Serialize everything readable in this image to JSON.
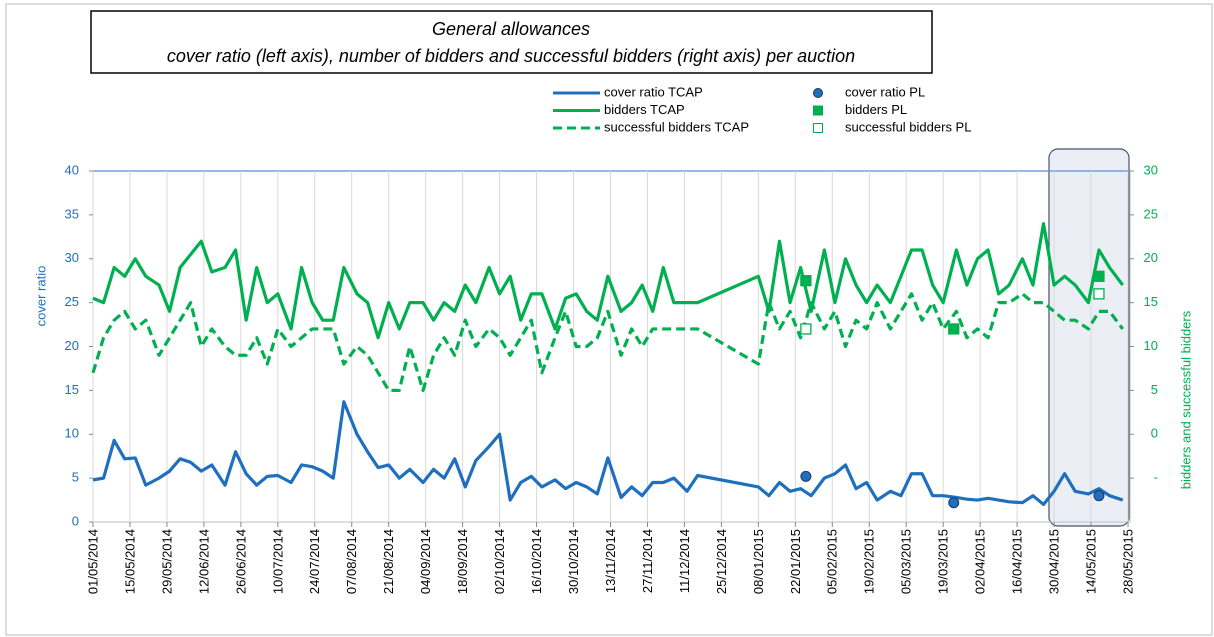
{
  "chart_data": {
    "type": "line",
    "title": "General allowances",
    "subtitle": "cover ratio (left axis), number of bidders and successful bidders (right axis) per auction",
    "y_label": "cover ratio",
    "y2_label": "bidders and successful bidders",
    "xlim": [
      "01/05/2014",
      "28/05/2015"
    ],
    "xticks": [
      "01/05/2014",
      "15/05/2014",
      "29/05/2014",
      "12/06/2014",
      "26/06/2014",
      "10/07/2014",
      "24/07/2014",
      "07/08/2014",
      "21/08/2014",
      "04/09/2014",
      "18/09/2014",
      "02/10/2014",
      "16/10/2014",
      "30/10/2014",
      "13/11/2014",
      "27/11/2014",
      "11/12/2014",
      "25/12/2014",
      "08/01/2015",
      "22/01/2015",
      "05/02/2015",
      "19/02/2015",
      "05/03/2015",
      "19/03/2015",
      "02/04/2015",
      "16/04/2015",
      "30/04/2015",
      "14/05/2015",
      "28/05/2015"
    ],
    "ylim": [
      0,
      40
    ],
    "yticks": [
      0,
      5,
      10,
      15,
      20,
      25,
      30,
      35,
      40
    ],
    "y2lim": [
      -10,
      30
    ],
    "y2ticks": [
      {
        "value": -5,
        "label": "-"
      },
      0,
      5,
      10,
      15,
      20,
      25,
      30
    ],
    "grid": "x",
    "x": [
      "01/05/2014",
      "05/05/2014",
      "09/05/2014",
      "13/05/2014",
      "17/05/2014",
      "21/05/2014",
      "26/05/2014",
      "30/05/2014",
      "03/06/2014",
      "07/06/2014",
      "11/06/2014",
      "15/06/2014",
      "20/06/2014",
      "24/06/2014",
      "28/06/2014",
      "02/07/2014",
      "06/07/2014",
      "10/07/2014",
      "15/07/2014",
      "19/07/2014",
      "23/07/2014",
      "27/07/2014",
      "31/07/2014",
      "04/08/2014",
      "09/08/2014",
      "13/08/2014",
      "17/08/2014",
      "21/08/2014",
      "25/08/2014",
      "29/08/2014",
      "03/09/2014",
      "07/09/2014",
      "11/09/2014",
      "15/09/2014",
      "19/09/2014",
      "23/09/2014",
      "28/09/2014",
      "02/10/2014",
      "06/10/2014",
      "10/10/2014",
      "14/10/2014",
      "18/10/2014",
      "23/10/2014",
      "27/10/2014",
      "31/10/2014",
      "04/11/2014",
      "08/11/2014",
      "12/11/2014",
      "17/11/2014",
      "21/11/2014",
      "25/11/2014",
      "29/11/2014",
      "03/12/2014",
      "07/12/2014",
      "12/12/2014",
      "16/12/2014",
      "08/01/2015",
      "12/01/2015",
      "16/01/2015",
      "20/01/2015",
      "24/01/2015",
      "28/01/2015",
      "02/02/2015",
      "06/02/2015",
      "10/02/2015",
      "14/02/2015",
      "18/02/2015",
      "22/02/2015",
      "27/02/2015",
      "03/03/2015",
      "07/03/2015",
      "11/03/2015",
      "15/03/2015",
      "19/03/2015",
      "24/03/2015",
      "28/03/2015",
      "01/04/2015",
      "05/04/2015",
      "09/04/2015",
      "13/04/2015",
      "18/04/2015",
      "22/04/2015",
      "26/04/2015",
      "30/04/2015",
      "04/05/2015",
      "08/05/2015",
      "13/05/2015",
      "17/05/2015",
      "21/05/2015",
      "26/05/2015"
    ],
    "series": [
      {
        "name": "cover ratio TCAP",
        "color": "#1f6fbf",
        "style": "solid",
        "axis": "y",
        "values": [
          4.8,
          5,
          9.3,
          7.2,
          7.3,
          4.2,
          5,
          5.8,
          7.2,
          6.8,
          5.8,
          6.5,
          4.2,
          8,
          5.5,
          4.2,
          5.2,
          5.3,
          4.5,
          6.5,
          6.3,
          5.8,
          5,
          13.7,
          10,
          8,
          6.2,
          6.5,
          5,
          6,
          4.5,
          6,
          5,
          7.2,
          4,
          7,
          8.6,
          10,
          2.5,
          4.5,
          5.2,
          4,
          4.8,
          3.8,
          4.5,
          4,
          3.2,
          7.3,
          2.8,
          4,
          3,
          4.5,
          4.5,
          5,
          3.5,
          5.3,
          4,
          3,
          4.5,
          3.5,
          3.8,
          3,
          5,
          5.5,
          6.5,
          3.8,
          4.5,
          2.5,
          3.5,
          3,
          5.5,
          5.5,
          3,
          3,
          2.8,
          2.6,
          2.5,
          2.7,
          2.5,
          2.3,
          2.2,
          3,
          2,
          3.5,
          5.5,
          3.5,
          3.2,
          3.8,
          3,
          2.5
        ]
      },
      {
        "name": "bidders TCAP",
        "color": "#00b050",
        "style": "solid",
        "axis": "y2",
        "values": [
          15.5,
          15,
          19,
          18,
          20,
          18,
          17,
          14,
          19,
          20.5,
          22,
          18.5,
          19,
          21,
          13,
          19,
          15,
          16,
          12,
          19,
          15,
          13,
          13,
          19,
          16,
          15,
          11,
          15,
          12,
          15,
          15,
          13,
          15,
          14,
          17,
          15,
          19,
          16,
          18,
          13,
          16,
          16,
          12,
          15.5,
          16,
          14,
          13,
          18,
          14,
          15,
          17,
          14,
          19,
          15,
          15,
          15,
          18,
          14,
          22,
          15,
          19,
          14,
          21,
          15,
          20,
          17,
          15,
          17,
          15,
          18,
          21,
          21,
          17,
          15,
          21,
          17,
          20,
          21,
          16,
          17,
          20,
          17,
          24,
          17,
          18,
          17,
          15,
          21,
          19,
          17
        ]
      },
      {
        "name": "successful bidders TCAP",
        "color": "#00b050",
        "style": "dashed",
        "axis": "y2",
        "values": [
          7,
          11,
          13,
          14,
          12,
          13,
          9,
          11,
          13,
          15,
          10,
          12,
          10,
          9,
          9,
          11,
          8,
          12,
          10,
          11,
          12,
          12,
          12,
          8,
          10,
          9,
          7,
          5,
          5,
          10,
          5,
          9,
          11,
          9,
          13,
          10,
          12,
          11,
          9,
          11,
          13,
          7,
          11,
          14,
          10,
          10,
          11,
          14,
          9,
          12,
          10,
          12,
          12,
          12,
          12,
          12,
          8,
          15,
          12,
          14,
          11,
          15,
          12,
          14,
          10,
          13,
          12,
          15,
          12,
          14,
          16,
          13,
          15,
          12,
          14,
          11,
          12,
          11,
          15,
          15,
          16,
          15,
          15,
          14,
          13,
          13,
          12,
          14,
          14,
          12
        ]
      },
      {
        "name": "cover ratio PL",
        "color": "#1f6fbf",
        "marker": "circle",
        "axis": "y",
        "x": [
          "26/01/2015",
          "23/03/2015",
          "17/05/2015"
        ],
        "values": [
          5.2,
          2.2,
          3
        ]
      },
      {
        "name": "bidders PL",
        "color": "#00b050",
        "marker": "square",
        "axis": "y2",
        "x": [
          "26/01/2015",
          "23/03/2015",
          "17/05/2015"
        ],
        "values": [
          17.5,
          12,
          18
        ]
      },
      {
        "name": "successful bidders PL",
        "color": "#00b050",
        "marker": "square-open",
        "axis": "y2",
        "x": [
          "26/01/2015",
          "17/05/2015"
        ],
        "values": [
          12,
          16
        ]
      }
    ]
  }
}
